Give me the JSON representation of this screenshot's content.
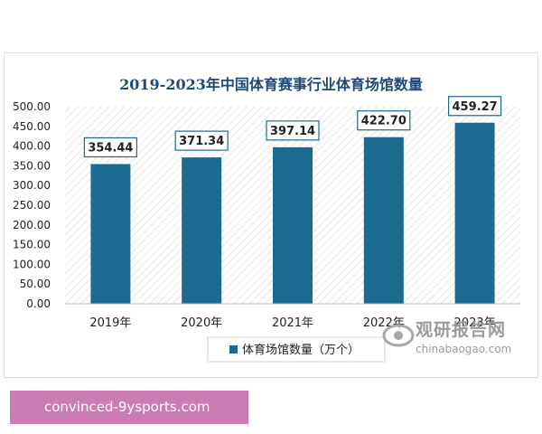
{
  "chart_data": {
    "type": "bar",
    "title": "2019-2023年中国体育赛事行业体育场馆数量",
    "categories": [
      "2019年",
      "2020年",
      "2021年",
      "2022年",
      "2023年"
    ],
    "series": [
      {
        "name": "体育场馆数量（万个）",
        "values": [
          354.44,
          371.34,
          397.14,
          422.7,
          459.27
        ]
      }
    ],
    "data_labels": [
      "354.44",
      "371.34",
      "397.14",
      "422.70",
      "459.27"
    ],
    "ylim": [
      0,
      500
    ],
    "yticks": [
      "0.00",
      "50.00",
      "100.00",
      "150.00",
      "200.00",
      "250.00",
      "300.00",
      "350.00",
      "400.00",
      "450.00",
      "500.00"
    ],
    "xlabel": "",
    "ylabel": "",
    "grid": "hatched plot background",
    "legend_position": "bottom",
    "colors": {
      "bar": "#1b6a8f",
      "title": "#1c4a7a",
      "label_border": "#1b6a8f"
    }
  },
  "watermark": {
    "brand_cn": "观研报告网",
    "brand_en": "chinabaogao.com"
  },
  "caption": {
    "text": "convinced-9ysports.com"
  }
}
